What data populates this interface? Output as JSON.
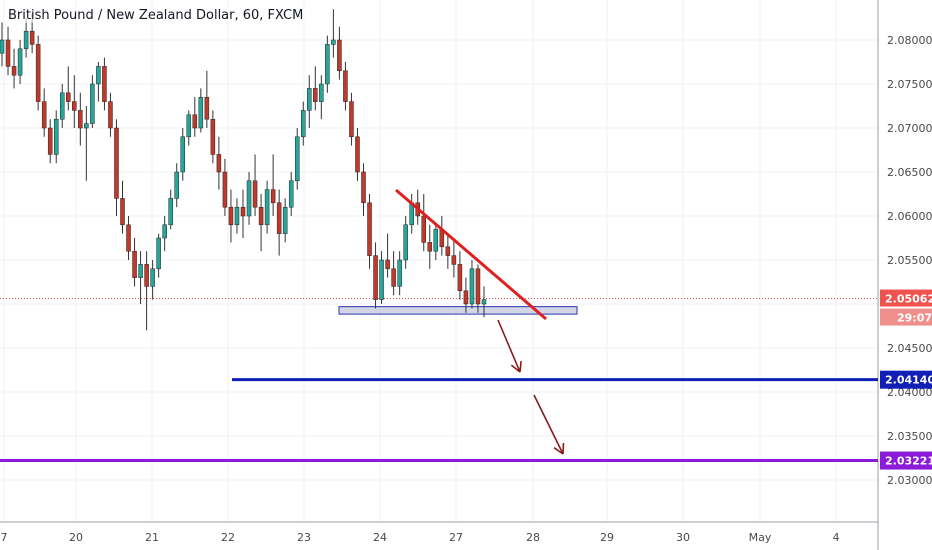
{
  "chart_data": {
    "type": "candlestick",
    "title": "British Pound / New Zealand Dollar, 60, FXCM",
    "y_ticks": [
      "2.08000",
      "2.07500",
      "2.07000",
      "2.06500",
      "2.06000",
      "2.05500",
      "2.04500",
      "2.04000",
      "2.03500",
      "2.03000"
    ],
    "ylim": [
      2.0245,
      2.0835
    ],
    "x_ticks": [
      "7",
      "20",
      "21",
      "22",
      "23",
      "24",
      "27",
      "28",
      "29",
      "30",
      "May",
      "4"
    ],
    "grid": true,
    "colors": {
      "up": "#26a69a",
      "down": "#c0392b",
      "wick": "#333333",
      "grid": "#eef0f3",
      "axis": "#4a4a4a"
    },
    "price_now": {
      "value": "2.05062",
      "countdown": "29:07",
      "color": "#ef5350"
    },
    "levels": [
      {
        "value": 2.0414,
        "label": "2.04140",
        "color": "#0f1fb8"
      },
      {
        "value": 2.03221,
        "label": "2.03221",
        "color": "#8b1bd8"
      }
    ],
    "support_zone": {
      "low": 2.04885,
      "high": 2.0497
    },
    "trendline": {
      "start": [
        24.2,
        2.063
      ],
      "end": [
        28.1,
        2.0482
      ],
      "color": "#e02020"
    },
    "arrows": [
      {
        "from": [
          27.6,
          2.0465
        ],
        "to": [
          27.9,
          2.0422
        ]
      },
      {
        "from": [
          27.6,
          2.0405
        ],
        "to": [
          28.3,
          2.0325
        ]
      }
    ],
    "candles_ohlc": [
      [
        2.0785,
        2.082,
        2.077,
        2.08
      ],
      [
        2.08,
        2.0815,
        2.076,
        2.077
      ],
      [
        2.077,
        2.079,
        2.0745,
        2.076
      ],
      [
        2.076,
        2.08,
        2.075,
        2.079
      ],
      [
        2.079,
        2.0825,
        2.078,
        2.081
      ],
      [
        2.081,
        2.083,
        2.0785,
        2.0795
      ],
      [
        2.0795,
        2.0805,
        2.072,
        2.073
      ],
      [
        2.073,
        2.0745,
        2.069,
        2.07
      ],
      [
        2.07,
        2.071,
        2.066,
        2.067
      ],
      [
        2.067,
        2.072,
        2.066,
        2.071
      ],
      [
        2.071,
        2.075,
        2.07,
        2.074
      ],
      [
        2.074,
        2.077,
        2.072,
        2.073
      ],
      [
        2.073,
        2.076,
        2.07,
        2.072
      ],
      [
        2.072,
        2.074,
        2.068,
        2.07
      ],
      [
        2.07,
        2.0725,
        2.064,
        2.0705
      ],
      [
        2.0705,
        2.076,
        2.07,
        2.075
      ],
      [
        2.075,
        2.0775,
        2.073,
        2.077
      ],
      [
        2.077,
        2.078,
        2.072,
        2.073
      ],
      [
        2.073,
        2.074,
        2.069,
        2.07
      ],
      [
        2.07,
        2.071,
        2.06,
        2.062
      ],
      [
        2.062,
        2.064,
        2.058,
        2.059
      ],
      [
        2.059,
        2.06,
        2.055,
        2.056
      ],
      [
        2.056,
        2.0575,
        2.052,
        2.053
      ],
      [
        2.053,
        2.056,
        2.05,
        2.0545
      ],
      [
        2.0545,
        2.056,
        2.047,
        2.052
      ],
      [
        2.052,
        2.055,
        2.0505,
        2.054
      ],
      [
        2.054,
        2.058,
        2.053,
        2.0575
      ],
      [
        2.0575,
        2.06,
        2.056,
        2.059
      ],
      [
        2.059,
        2.063,
        2.0585,
        2.062
      ],
      [
        2.062,
        2.066,
        2.061,
        2.065
      ],
      [
        2.065,
        2.07,
        2.064,
        2.069
      ],
      [
        2.069,
        2.072,
        2.068,
        2.0715
      ],
      [
        2.0715,
        2.0735,
        2.069,
        2.07
      ],
      [
        2.07,
        2.0745,
        2.0695,
        2.0735
      ],
      [
        2.0735,
        2.0765,
        2.07,
        2.071
      ],
      [
        2.071,
        2.072,
        2.066,
        2.067
      ],
      [
        2.067,
        2.069,
        2.063,
        2.065
      ],
      [
        2.065,
        2.0665,
        2.06,
        2.061
      ],
      [
        2.061,
        2.063,
        2.057,
        2.059
      ],
      [
        2.059,
        2.062,
        2.058,
        2.061
      ],
      [
        2.061,
        2.063,
        2.0575,
        2.06
      ],
      [
        2.06,
        2.065,
        2.059,
        2.064
      ],
      [
        2.064,
        2.067,
        2.06,
        2.061
      ],
      [
        2.061,
        2.0625,
        2.056,
        2.059
      ],
      [
        2.059,
        2.064,
        2.058,
        2.063
      ],
      [
        2.063,
        2.067,
        2.06,
        2.0615
      ],
      [
        2.0615,
        2.063,
        2.0555,
        2.058
      ],
      [
        2.058,
        2.062,
        2.057,
        2.061
      ],
      [
        2.061,
        2.065,
        2.06,
        2.064
      ],
      [
        2.064,
        2.07,
        2.063,
        2.069
      ],
      [
        2.069,
        2.073,
        2.068,
        2.072
      ],
      [
        2.072,
        2.076,
        2.07,
        2.0745
      ],
      [
        2.0745,
        2.077,
        2.072,
        2.073
      ],
      [
        2.073,
        2.076,
        2.071,
        2.075
      ],
      [
        2.075,
        2.0805,
        2.074,
        2.0795
      ],
      [
        2.0795,
        2.0835,
        2.078,
        2.08
      ],
      [
        2.08,
        2.0815,
        2.0755,
        2.0765
      ],
      [
        2.0765,
        2.0775,
        2.072,
        2.073
      ],
      [
        2.073,
        2.074,
        2.068,
        2.069
      ],
      [
        2.069,
        2.07,
        2.064,
        2.065
      ],
      [
        2.065,
        2.066,
        2.06,
        2.0615
      ],
      [
        2.0615,
        2.0625,
        2.054,
        2.0555
      ],
      [
        2.0555,
        2.057,
        2.0495,
        2.0505
      ],
      [
        2.0505,
        2.056,
        2.05,
        2.055
      ],
      [
        2.055,
        2.058,
        2.053,
        2.054
      ],
      [
        2.054,
        2.056,
        2.051,
        2.052
      ],
      [
        2.052,
        2.056,
        2.051,
        2.055
      ],
      [
        2.055,
        2.06,
        2.054,
        2.059
      ],
      [
        2.059,
        2.0625,
        2.058,
        2.0615
      ],
      [
        2.0615,
        2.063,
        2.059,
        2.06
      ],
      [
        2.06,
        2.0625,
        2.056,
        2.057
      ],
      [
        2.057,
        2.059,
        2.054,
        2.056
      ],
      [
        2.056,
        2.059,
        2.055,
        2.0585
      ],
      [
        2.0585,
        2.06,
        2.0555,
        2.0565
      ],
      [
        2.0565,
        2.058,
        2.054,
        2.0555
      ],
      [
        2.0555,
        2.0575,
        2.053,
        2.0545
      ],
      [
        2.0545,
        2.056,
        2.0505,
        2.0515
      ],
      [
        2.0515,
        2.053,
        2.049,
        2.05
      ],
      [
        2.05,
        2.055,
        2.0495,
        2.054
      ],
      [
        2.054,
        2.0545,
        2.049,
        2.05
      ],
      [
        2.05,
        2.052,
        2.0485,
        2.0505
      ]
    ]
  }
}
